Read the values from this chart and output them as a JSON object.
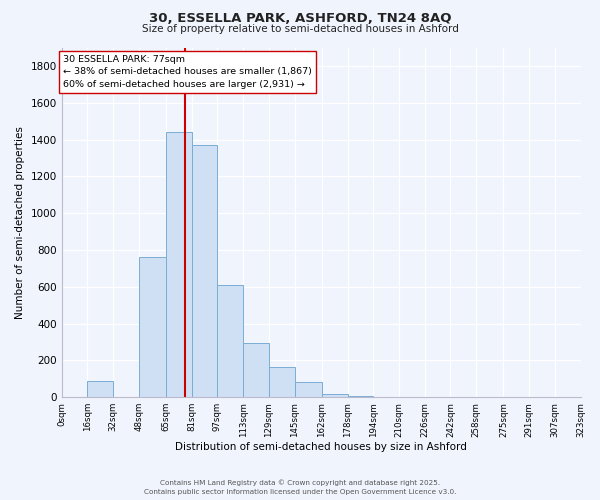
{
  "title": "30, ESSELLA PARK, ASHFORD, TN24 8AQ",
  "subtitle": "Size of property relative to semi-detached houses in Ashford",
  "xlabel": "Distribution of semi-detached houses by size in Ashford",
  "ylabel": "Number of semi-detached properties",
  "bar_color": "#cfe0f5",
  "bar_edge_color": "#7aadd4",
  "bg_color": "#f0f4fd",
  "grid_color": "#ffffff",
  "property_value": 77,
  "vline_color": "#cc0000",
  "annotation_text_line1": "30 ESSELLA PARK: 77sqm",
  "annotation_text_line2": "← 38% of semi-detached houses are smaller (1,867)",
  "annotation_text_line3": "60% of semi-detached houses are larger (2,931) →",
  "bin_edges": [
    0,
    16,
    32,
    48,
    65,
    81,
    97,
    113,
    129,
    145,
    162,
    178,
    194,
    210,
    226,
    242,
    258,
    275,
    291,
    307,
    323
  ],
  "bin_labels": [
    "0sqm",
    "16sqm",
    "32sqm",
    "48sqm",
    "65sqm",
    "81sqm",
    "97sqm",
    "113sqm",
    "129sqm",
    "145sqm",
    "162sqm",
    "178sqm",
    "194sqm",
    "210sqm",
    "226sqm",
    "242sqm",
    "258sqm",
    "275sqm",
    "291sqm",
    "307sqm",
    "323sqm"
  ],
  "bar_heights": [
    2,
    90,
    0,
    760,
    1440,
    1370,
    610,
    295,
    165,
    80,
    20,
    8,
    0,
    0,
    0,
    0,
    0,
    0,
    0,
    0
  ],
  "ylim": [
    0,
    1900
  ],
  "yticks": [
    0,
    200,
    400,
    600,
    800,
    1000,
    1200,
    1400,
    1600,
    1800
  ],
  "footer_line1": "Contains HM Land Registry data © Crown copyright and database right 2025.",
  "footer_line2": "Contains public sector information licensed under the Open Government Licence v3.0."
}
